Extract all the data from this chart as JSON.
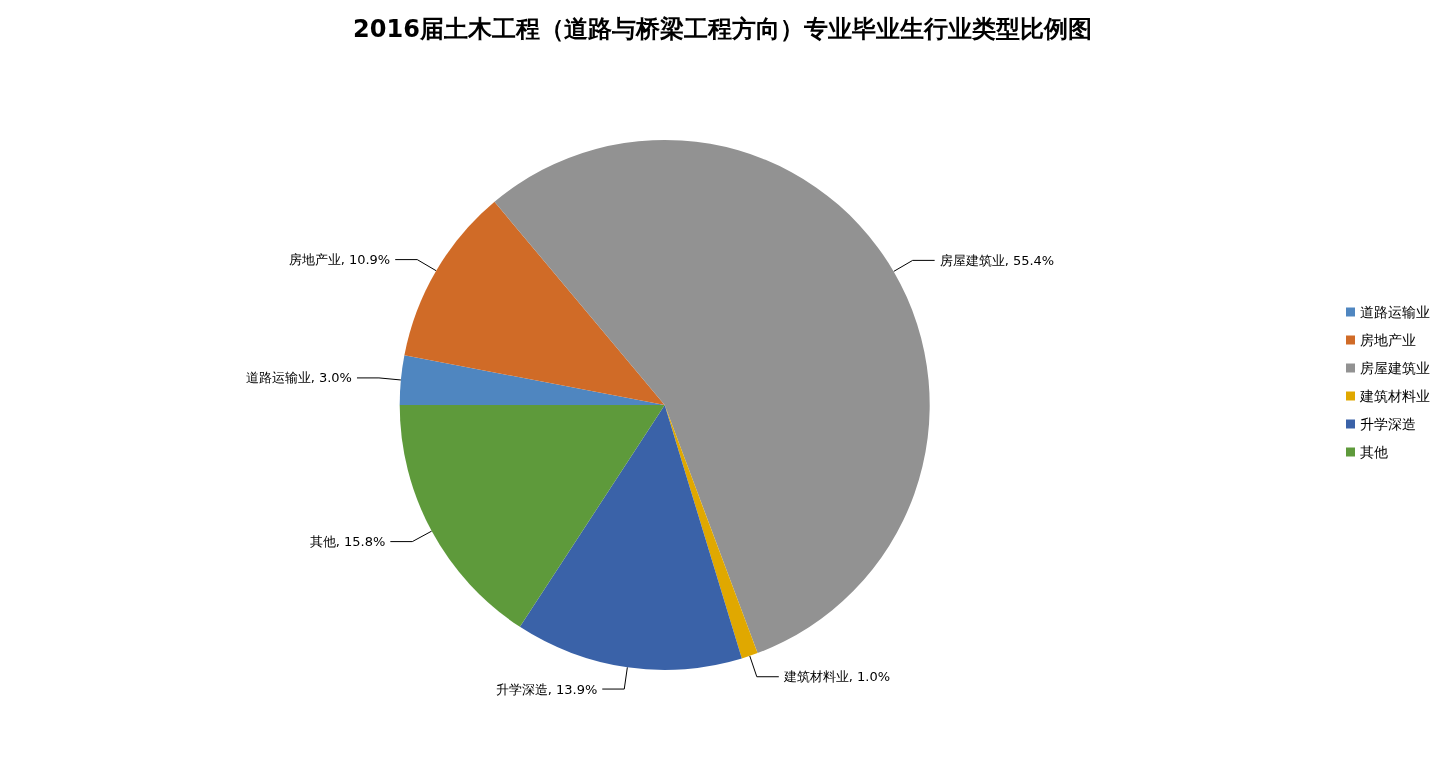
{
  "chart_data": {
    "type": "pie",
    "title": "2016届土木工程（道路与桥梁工程方向）专业毕业生行业类型比例图",
    "categories": [
      "道路运输业",
      "房地产业",
      "房屋建筑业",
      "建筑材料业",
      "升学深造",
      "其他"
    ],
    "values": [
      3.0,
      10.9,
      55.4,
      1.0,
      13.9,
      15.8
    ],
    "value_labels": [
      "道路运输业, 3.0%",
      "房地产业, 10.9%",
      "房屋建筑业, 55.4%",
      "建筑材料业, 1.0%",
      "升学深造, 13.9%",
      "其他, 15.8%"
    ],
    "colors": [
      "#4f86c0",
      "#d06b27",
      "#929292",
      "#e0a800",
      "#3a62a8",
      "#5e9a3b"
    ],
    "legend": "right"
  }
}
